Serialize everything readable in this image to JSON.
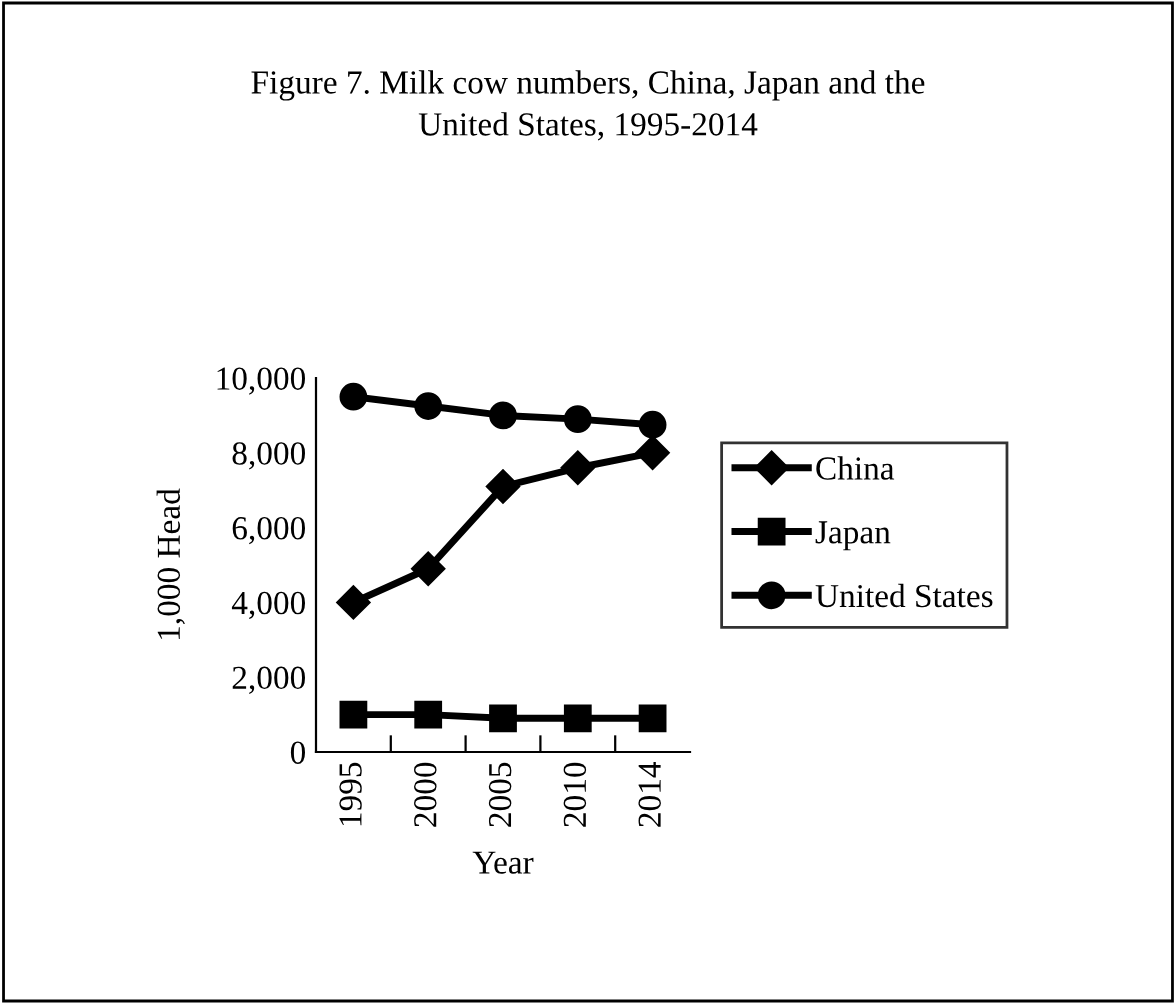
{
  "chart_data": {
    "type": "line",
    "title": "Figure 7. Milk cow numbers, China, Japan and the\nUnited States, 1995-2014",
    "xlabel": "Year",
    "ylabel": "1,000 Head",
    "categories": [
      "1995",
      "2000",
      "2005",
      "2010",
      "2014"
    ],
    "series": [
      {
        "name": "China",
        "color": "#000000",
        "marker": "diamond",
        "values": [
          4000,
          4900,
          7100,
          7600,
          8000
        ]
      },
      {
        "name": "Japan",
        "color": "#000000",
        "marker": "square",
        "values": [
          1000,
          1000,
          900,
          900,
          900
        ]
      },
      {
        "name": "United States",
        "color": "#000000",
        "marker": "circle",
        "values": [
          9500,
          9250,
          9000,
          8900,
          8750
        ]
      }
    ],
    "ylim": [
      0,
      10000
    ],
    "yticks": [
      {
        "value": 0,
        "label": "0"
      },
      {
        "value": 2000,
        "label": "2,000"
      },
      {
        "value": 4000,
        "label": "4,000"
      },
      {
        "value": 6000,
        "label": "6,000"
      },
      {
        "value": 8000,
        "label": "8,000"
      },
      {
        "value": 10000,
        "label": "10,000"
      }
    ],
    "grid": false,
    "legend": "right",
    "line_style": "solid"
  }
}
